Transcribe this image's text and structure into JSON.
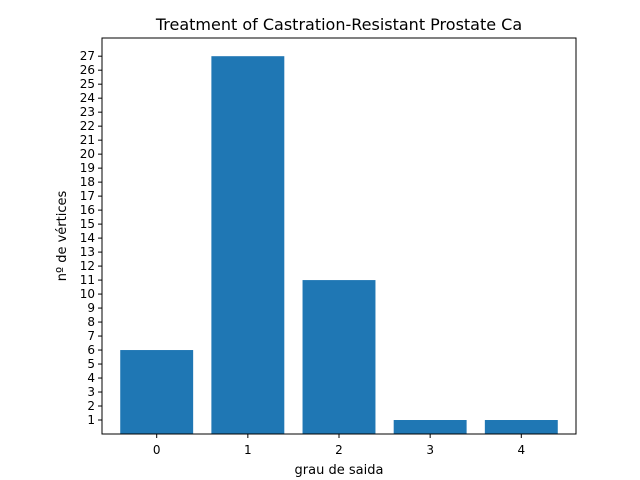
{
  "chart_data": {
    "type": "bar",
    "title": "Treatment of Castration-Resistant Prostate Ca",
    "xlabel": "grau de saida",
    "ylabel": "nº de vértices",
    "categories": [
      "0",
      "1",
      "2",
      "3",
      "4"
    ],
    "values": [
      6,
      27,
      11,
      1,
      1
    ],
    "yticks": [
      "1",
      "2",
      "3",
      "4",
      "5",
      "6",
      "7",
      "8",
      "9",
      "10",
      "11",
      "12",
      "13",
      "14",
      "15",
      "16",
      "17",
      "18",
      "19",
      "20",
      "21",
      "22",
      "23",
      "24",
      "25",
      "26",
      "27"
    ],
    "ylim": [
      0,
      28.3
    ],
    "bar_color": "#1f77b4",
    "grid": false
  }
}
